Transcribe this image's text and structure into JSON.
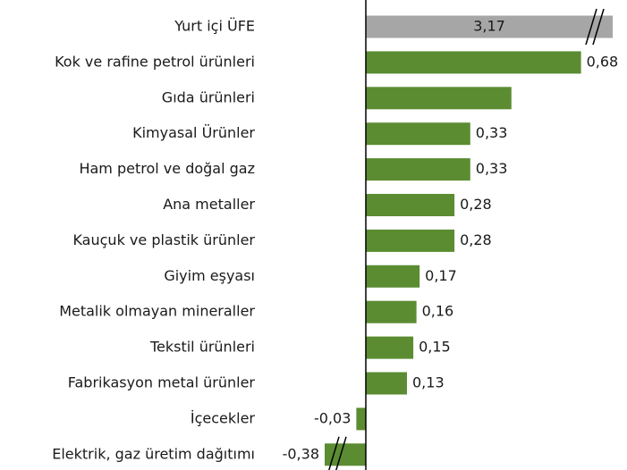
{
  "chart_data": {
    "type": "hbar",
    "categories": [
      "Yurt içi ÜFE",
      "Kok ve rafine petrol ürünleri",
      "Gıda ürünleri",
      "Kimyasal Ürünler",
      "Ham petrol ve doğal gaz",
      "Ana metaller",
      "Kauçuk ve plastik ürünler",
      "Giyim eşyası",
      "Metalik olmayan mineraller",
      "Tekstil ürünleri",
      "Fabrikasyon metal ürünler",
      "İçecekler",
      "Elektrik, gaz üretim dağıtımı"
    ],
    "values": [
      3.17,
      0.68,
      0.46,
      0.33,
      0.33,
      0.28,
      0.28,
      0.17,
      0.16,
      0.15,
      0.13,
      -0.03,
      -0.38
    ],
    "value_labels": [
      "3,17",
      "0,68",
      null,
      "0,33",
      "0,33",
      "0,28",
      "0,28",
      "0,17",
      "0,16",
      "0,15",
      "0,13",
      "-0,03",
      "-0,38"
    ],
    "colors": [
      "#a6a6a6",
      "#5b8c32",
      "#5b8c32",
      "#5b8c32",
      "#5b8c32",
      "#5b8c32",
      "#5b8c32",
      "#5b8c32",
      "#5b8c32",
      "#5b8c32",
      "#5b8c32",
      "#5b8c32",
      "#5b8c32"
    ],
    "xlim": [
      -0.13,
      0.78
    ]
  }
}
